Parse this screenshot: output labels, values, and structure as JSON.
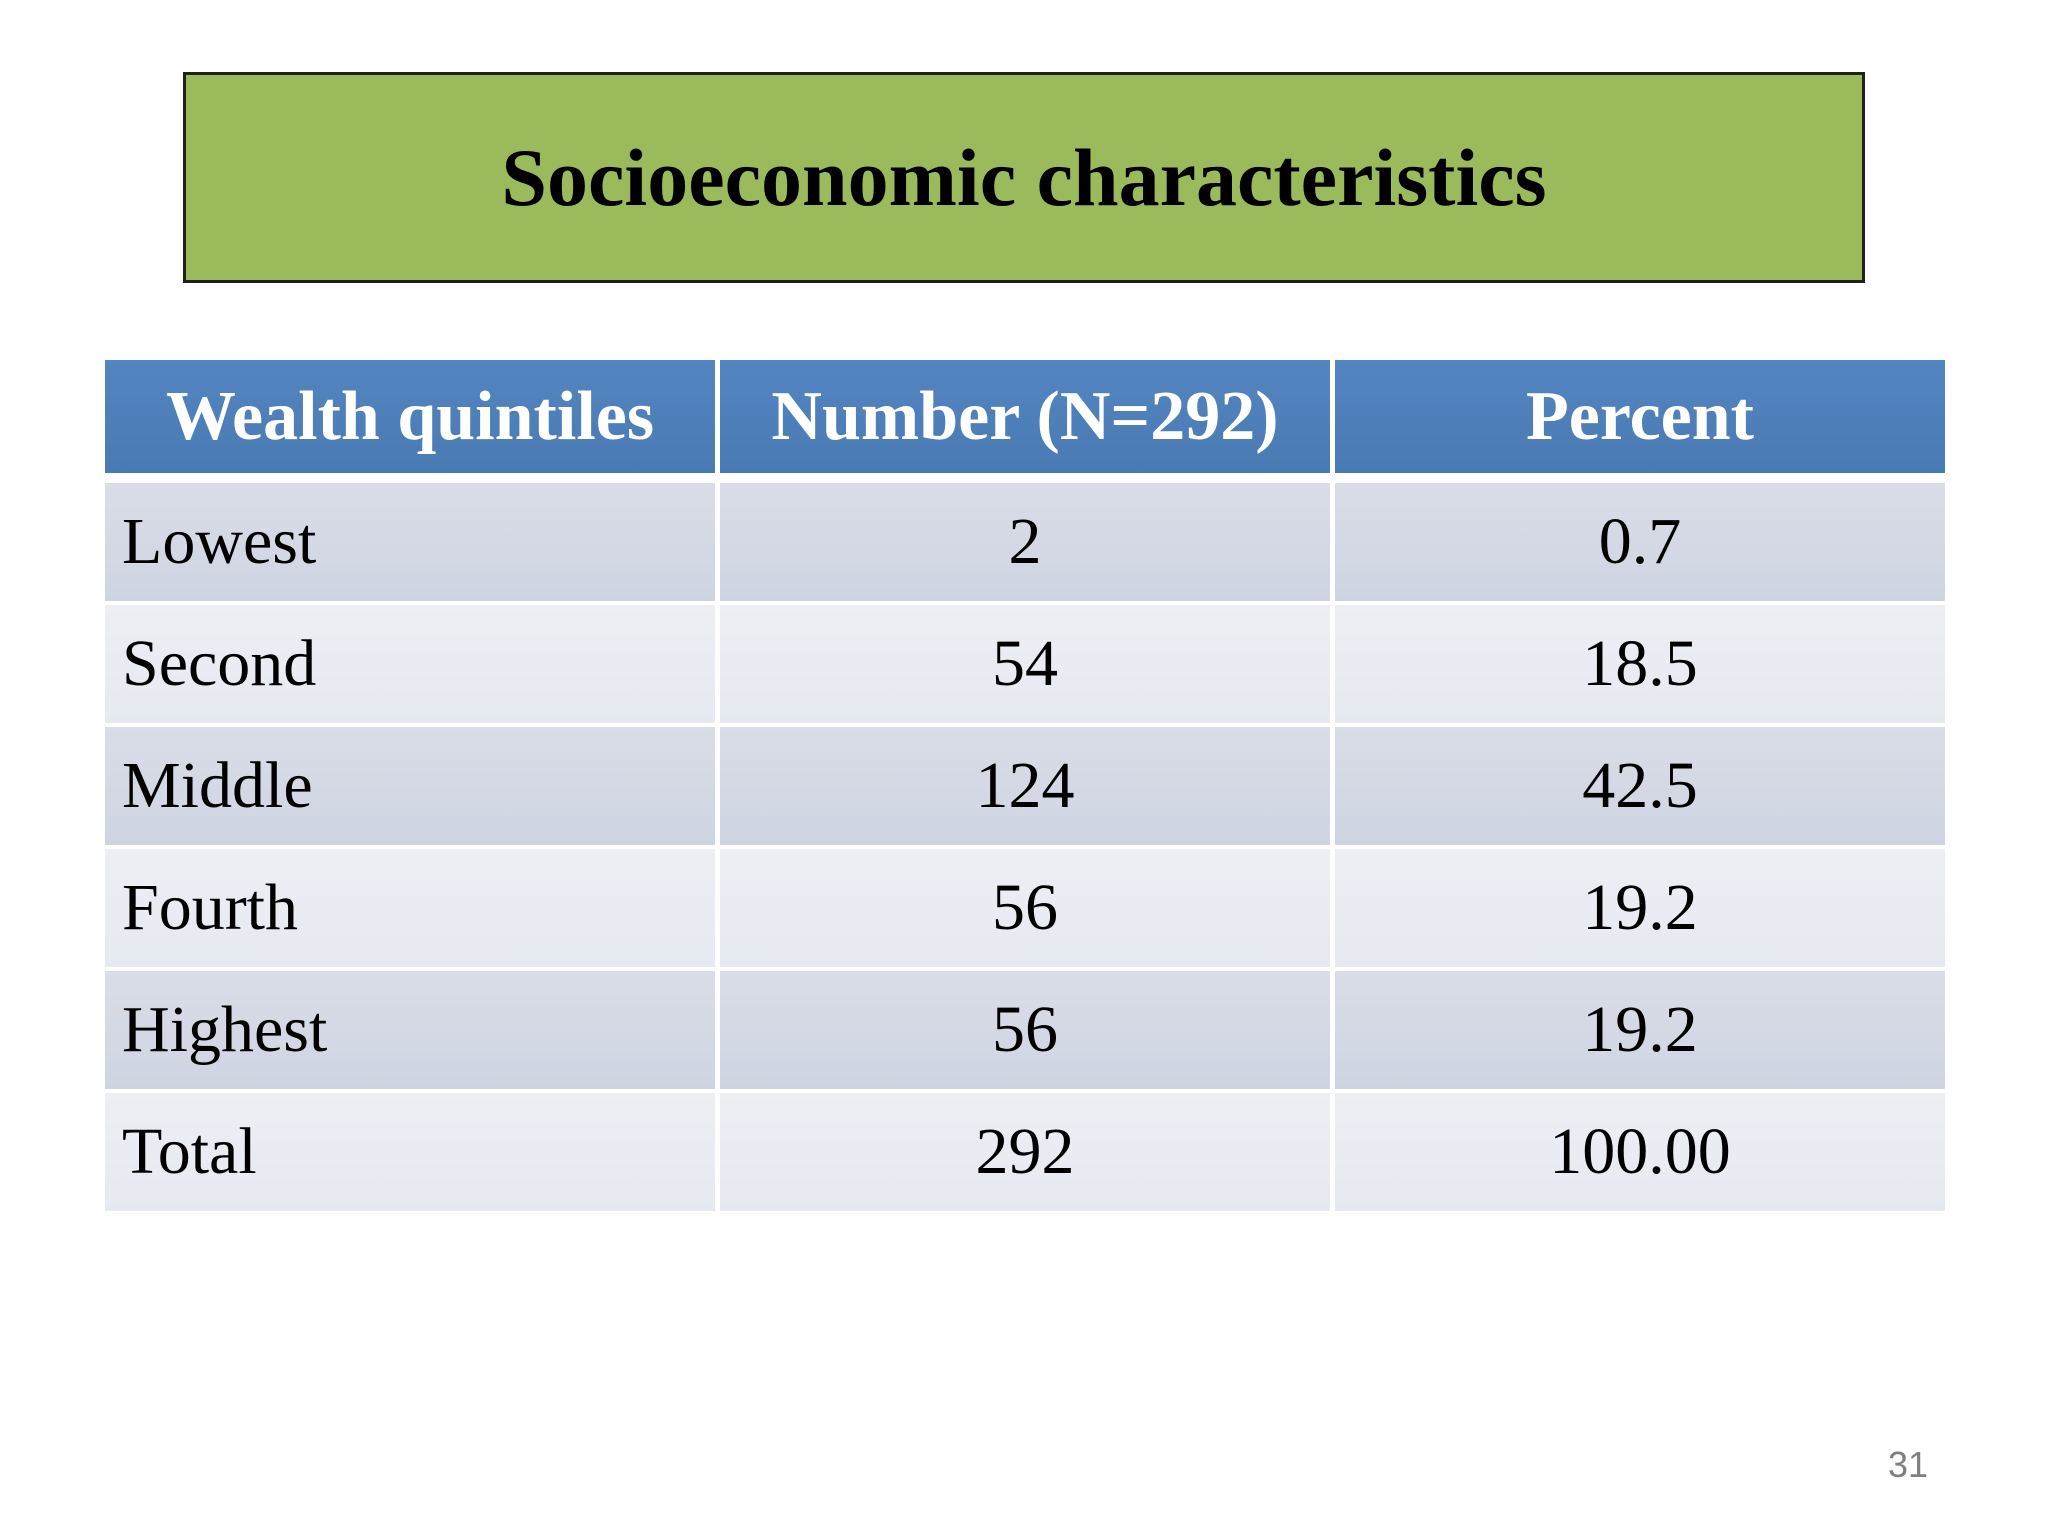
{
  "slide": {
    "title": "Socioeconomic characteristics",
    "page_number": "31",
    "colors": {
      "title_bg": "#9BBA5C",
      "title_border": "#202020",
      "header_bg": "#4E80BC",
      "header_text": "#FFFFFF",
      "row_dark": "#D3D9E4",
      "row_light": "#E9EBF3",
      "body_text": "#000000",
      "page_number_text": "#7F7F7F"
    }
  },
  "table": {
    "columns": [
      "Wealth quintiles",
      "Number (N=292)",
      "Percent"
    ],
    "rows": [
      {
        "label": "Lowest",
        "number": "2",
        "percent": "0.7"
      },
      {
        "label": "Second",
        "number": "54",
        "percent": "18.5"
      },
      {
        "label": "Middle",
        "number": "124",
        "percent": "42.5"
      },
      {
        "label": "Fourth",
        "number": "56",
        "percent": "19.2"
      },
      {
        "label": "Highest",
        "number": "56",
        "percent": "19.2"
      },
      {
        "label": "Total",
        "number": "292",
        "percent": "100.00"
      }
    ]
  },
  "chart_data": {
    "type": "table",
    "title": "Socioeconomic characteristics",
    "columns": [
      "Wealth quintiles",
      "Number (N=292)",
      "Percent"
    ],
    "categories": [
      "Lowest",
      "Second",
      "Middle",
      "Fourth",
      "Highest",
      "Total"
    ],
    "series": [
      {
        "name": "Number (N=292)",
        "values": [
          2,
          54,
          124,
          56,
          56,
          292
        ]
      },
      {
        "name": "Percent",
        "values": [
          0.7,
          18.5,
          42.5,
          19.2,
          19.2,
          100.0
        ]
      }
    ]
  }
}
